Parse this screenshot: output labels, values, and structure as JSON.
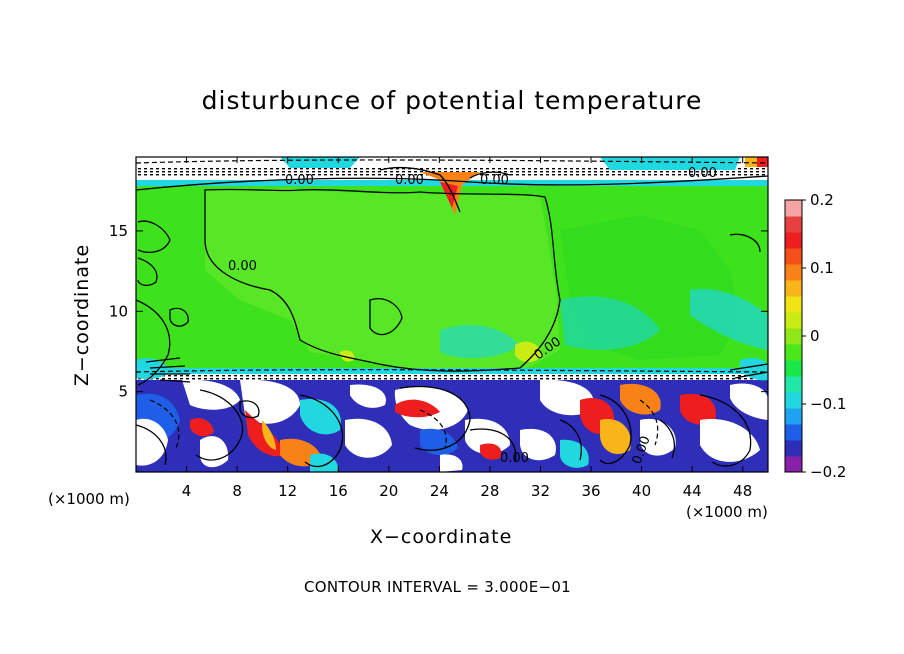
{
  "chart_data": {
    "type": "heatmap",
    "title": "disturbunce of potential temperature",
    "xlabel": "X−coordinate",
    "ylabel": "Z−coordinate",
    "x_unit": "(×1000 m)",
    "contour_interval_text": "CONTOUR INTERVAL = 3.000E−01",
    "xlim": [
      0,
      50
    ],
    "ylim": [
      0,
      19.6
    ],
    "x_ticks": [
      4,
      8,
      12,
      16,
      20,
      24,
      28,
      32,
      36,
      40,
      44,
      48
    ],
    "x_tick_labels": [
      "4",
      "8",
      "12",
      "16",
      "20",
      "24",
      "28",
      "32",
      "36",
      "40",
      "44",
      "48"
    ],
    "y_ticks": [
      5,
      10,
      15
    ],
    "y_tick_labels": [
      "5",
      "10",
      "15"
    ],
    "colorbar": {
      "range": [
        -0.2,
        0.2
      ],
      "tick_labels": [
        "0.2",
        "0.1",
        "0",
        "−0.1",
        "−0.2"
      ],
      "tick_values": [
        0.2,
        0.1,
        0,
        -0.1,
        -0.2
      ],
      "colors": [
        "#8a1fa8",
        "#2e2eb8",
        "#1f5fe8",
        "#1fa2f0",
        "#22d8e0",
        "#20e8a8",
        "#18e84a",
        "#4ae81a",
        "#8ee818",
        "#c8ec14",
        "#f0e414",
        "#f8b418",
        "#f88218",
        "#f45018",
        "#ee1e1e",
        "#e64040",
        "#f5a3a3"
      ]
    },
    "contour_labels": [
      "0.00",
      "0.00",
      "0.00",
      "0.00",
      "0.00",
      "0.00",
      "0.00",
      "0.00"
    ],
    "regions": {
      "upper_layer_color": "#3fe61e",
      "lower_layer_colors": [
        "#2e2eb8",
        "#ffffff",
        "#1f5fe8",
        "#ee1e1e",
        "#f8b418",
        "#22d8e0"
      ]
    }
  }
}
